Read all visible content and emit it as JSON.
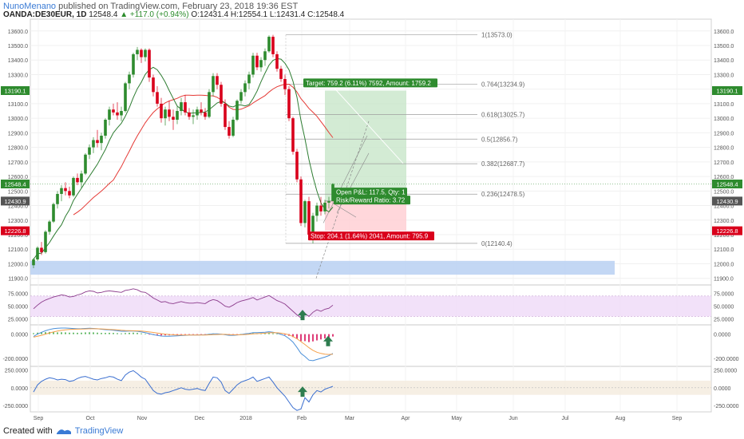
{
  "header": {
    "author": "NunoMenano",
    "published": "published on TradingView.com, February 23, 2018 19:36 EST",
    "symbol": "OANDA:DE30EUR, 1D",
    "last": "12548.4",
    "change": "+117.0 (+0.94%)",
    "ohlc": "O:12431.4 H:12554.1 L:12431.4 C:12548.4"
  },
  "footer": {
    "created_with": "Created with",
    "brand": "TradingView",
    "logo_icon": "tradingview-logo-icon"
  },
  "colors": {
    "up": "#2e8b2e",
    "down": "#d9001b",
    "ma_fast": "#2e7d32",
    "ma_slow": "#e53935",
    "rsi": "#8b3a8b",
    "macd": "#4a90d9",
    "signal": "#f5a04a",
    "cci": "#3b6fd0",
    "target_zone": "#c8e6c9",
    "stop_zone": "#ffcdd2",
    "support_zone": "#bcd3f3"
  },
  "chart_data": {
    "type": "candlestick",
    "main": {
      "y_axis_ticks": [
        "13600.0",
        "13500.0",
        "13400.0",
        "13300.0",
        "13200.0",
        "13100.0",
        "13000.0",
        "12900.0",
        "12800.0",
        "12700.0",
        "12600.0",
        "12500.0",
        "12400.0",
        "12300.0",
        "12200.0",
        "12100.0",
        "12000.0",
        "11900.0"
      ],
      "ylim": [
        11860,
        13670
      ],
      "current_price": "12548.4",
      "target_price": "13190.1",
      "entry_price": "12430.9",
      "stop_price": "12226.8",
      "candles": [
        [
          11990,
          12040,
          11970,
          12030
        ],
        [
          12030,
          12120,
          12020,
          12110
        ],
        [
          12110,
          12150,
          12060,
          12080
        ],
        [
          12080,
          12230,
          12070,
          12220
        ],
        [
          12220,
          12300,
          12200,
          12290
        ],
        [
          12290,
          12420,
          12280,
          12410
        ],
        [
          12410,
          12500,
          12380,
          12480
        ],
        [
          12480,
          12540,
          12430,
          12520
        ],
        [
          12520,
          12560,
          12470,
          12500
        ],
        [
          12500,
          12530,
          12450,
          12470
        ],
        [
          12470,
          12600,
          12460,
          12590
        ],
        [
          12590,
          12620,
          12540,
          12560
        ],
        [
          12560,
          12640,
          12520,
          12620
        ],
        [
          12620,
          12760,
          12610,
          12750
        ],
        [
          12750,
          12820,
          12720,
          12800
        ],
        [
          12800,
          12870,
          12760,
          12850
        ],
        [
          12850,
          12920,
          12800,
          12830
        ],
        [
          12830,
          12900,
          12780,
          12880
        ],
        [
          12880,
          13000,
          12860,
          12990
        ],
        [
          12990,
          13080,
          12950,
          13060
        ],
        [
          13060,
          13100,
          13020,
          13040
        ],
        [
          13040,
          13110,
          12990,
          13020
        ],
        [
          13020,
          13080,
          12980,
          13050
        ],
        [
          13050,
          13250,
          13040,
          13240
        ],
        [
          13240,
          13320,
          13200,
          13300
        ],
        [
          13300,
          13450,
          13280,
          13440
        ],
        [
          13440,
          13490,
          13400,
          13470
        ],
        [
          13470,
          13480,
          13380,
          13420
        ],
        [
          13420,
          13480,
          13390,
          13470
        ],
        [
          13470,
          13480,
          13250,
          13280
        ],
        [
          13280,
          13300,
          13150,
          13180
        ],
        [
          13180,
          13220,
          13080,
          13100
        ],
        [
          13100,
          13140,
          12970,
          13000
        ],
        [
          13000,
          13080,
          12950,
          13060
        ],
        [
          13060,
          13120,
          12980,
          13010
        ],
        [
          13010,
          13060,
          12920,
          12990
        ],
        [
          12990,
          13080,
          12960,
          13050
        ],
        [
          13050,
          13140,
          13020,
          13110
        ],
        [
          13110,
          13160,
          13020,
          13040
        ],
        [
          13040,
          13070,
          12990,
          13010
        ],
        [
          13010,
          13060,
          12960,
          13020
        ],
        [
          13020,
          13080,
          12990,
          13060
        ],
        [
          13060,
          13110,
          13020,
          13040
        ],
        [
          13040,
          13070,
          12990,
          13010
        ],
        [
          13010,
          13200,
          13000,
          13180
        ],
        [
          13180,
          13310,
          13150,
          13290
        ],
        [
          13290,
          13310,
          13200,
          13230
        ],
        [
          13230,
          13250,
          13080,
          13100
        ],
        [
          13100,
          13130,
          12920,
          12940
        ],
        [
          12940,
          12980,
          12860,
          12880
        ],
        [
          12880,
          13010,
          12870,
          12990
        ],
        [
          12990,
          13130,
          12980,
          13120
        ],
        [
          13120,
          13200,
          13100,
          13180
        ],
        [
          13180,
          13260,
          13150,
          13240
        ],
        [
          13240,
          13320,
          13200,
          13300
        ],
        [
          13300,
          13450,
          13280,
          13430
        ],
        [
          13430,
          13450,
          13330,
          13350
        ],
        [
          13350,
          13420,
          13320,
          13400
        ],
        [
          13400,
          13480,
          13360,
          13460
        ],
        [
          13460,
          13570,
          13450,
          13560
        ],
        [
          13560,
          13573,
          13420,
          13440
        ],
        [
          13440,
          13460,
          13320,
          13340
        ],
        [
          13340,
          13360,
          13250,
          13270
        ],
        [
          13270,
          13300,
          13160,
          13200
        ],
        [
          13200,
          13220,
          12980,
          13000
        ],
        [
          13000,
          13010,
          12750,
          12770
        ],
        [
          12770,
          12790,
          12560,
          12580
        ],
        [
          12580,
          12600,
          12260,
          12280
        ],
        [
          12280,
          12440,
          12250,
          12430
        ],
        [
          12430,
          12460,
          12180,
          12200
        ],
        [
          12200,
          12350,
          12140,
          12330
        ],
        [
          12330,
          12420,
          12290,
          12400
        ],
        [
          12400,
          12460,
          12330,
          12360
        ],
        [
          12360,
          12440,
          12340,
          12420
        ],
        [
          12420,
          12460,
          12380,
          12430
        ],
        [
          12431.4,
          12554.1,
          12431.4,
          12548.4
        ]
      ],
      "fib_levels": [
        {
          "label": "1(13573.0)",
          "value": 13573.0
        },
        {
          "label": "0.764(13234.9)",
          "value": 13234.9
        },
        {
          "label": "0.618(13025.7)",
          "value": 13025.7
        },
        {
          "label": "0.5(12856.7)",
          "value": 12856.7
        },
        {
          "label": "0.382(12687.7)",
          "value": 12687.7
        },
        {
          "label": "0.236(12478.5)",
          "value": 12478.5
        },
        {
          "label": "0(12140.4)",
          "value": 12140.4
        }
      ],
      "position_labels": {
        "target": "Target: 759.2 (6.11%) 7592, Amount: 1759.2",
        "open": "Open P&L: 117.5, Qty: 1",
        "risk_reward": "Risk/Reward Ratio: 3.72",
        "stop": "Stop: 204.1 (1.64%) 2041, Amount: 795.9"
      },
      "support_zone": [
        11925,
        12020
      ]
    },
    "x_axis_labels": [
      "Sep",
      "Oct",
      "Nov",
      "Dec",
      "2018",
      "Feb",
      "Mar",
      "Apr",
      "May",
      "Jun",
      "Jul",
      "Aug",
      "Sep"
    ],
    "rsi": {
      "ticks": [
        "75.0000",
        "50.0000",
        "25.0000"
      ],
      "ylim": [
        15,
        90
      ],
      "band": [
        30,
        70
      ],
      "values": [
        45,
        52,
        58,
        62,
        65,
        68,
        70,
        72,
        71,
        68,
        69,
        72,
        74,
        78,
        80,
        79,
        76,
        77,
        79,
        80,
        79,
        78,
        77,
        81,
        82,
        84,
        82,
        78,
        77,
        72,
        66,
        62,
        58,
        59,
        56,
        55,
        57,
        59,
        57,
        56,
        56,
        57,
        56,
        55,
        60,
        63,
        61,
        56,
        50,
        48,
        52,
        57,
        60,
        62,
        64,
        67,
        62,
        65,
        68,
        71,
        66,
        61,
        58,
        54,
        47,
        40,
        33,
        27,
        36,
        30,
        38,
        43,
        40,
        44,
        46,
        52
      ]
    },
    "macd": {
      "ticks": [
        "0.0000",
        "-200.0000"
      ],
      "ylim": [
        -260,
        70
      ],
      "histogram": [
        8,
        12,
        15,
        16,
        18,
        16,
        14,
        15,
        14,
        12,
        12,
        11,
        12,
        14,
        15,
        14,
        12,
        10,
        10,
        11,
        10,
        8,
        6,
        9,
        11,
        12,
        10,
        6,
        4,
        -2,
        -6,
        -9,
        -11,
        -10,
        -10,
        -8,
        -6,
        -5,
        -5,
        -4,
        -4,
        -3,
        -2,
        -2,
        2,
        5,
        4,
        1,
        -4,
        -7,
        -5,
        -2,
        1,
        3,
        5,
        8,
        5,
        6,
        7,
        9,
        6,
        2,
        -2,
        -6,
        -14,
        -24,
        -38,
        -58,
        -58,
        -66,
        -60,
        -52,
        -44,
        -36,
        -28,
        -20
      ],
      "macd_line": [
        -20,
        0,
        15,
        28,
        38,
        45,
        48,
        50,
        50,
        48,
        46,
        44,
        45,
        47,
        48,
        47,
        44,
        40,
        37,
        35,
        32,
        28,
        24,
        24,
        25,
        26,
        24,
        18,
        12,
        4,
        -4,
        -10,
        -16,
        -18,
        -18,
        -16,
        -14,
        -12,
        -10,
        -8,
        -8,
        -7,
        -6,
        -5,
        -2,
        2,
        3,
        0,
        -5,
        -10,
        -10,
        -7,
        -3,
        2,
        6,
        12,
        12,
        14,
        16,
        20,
        16,
        8,
        -2,
        -14,
        -36,
        -66,
        -110,
        -160,
        -185,
        -215,
        -220,
        -210,
        -200,
        -190,
        -178,
        -160
      ],
      "signal_line": [
        -25,
        -18,
        -10,
        0,
        10,
        18,
        25,
        31,
        35,
        38,
        40,
        41,
        42,
        43,
        44,
        44,
        44,
        43,
        41,
        39,
        37,
        35,
        32,
        30,
        29,
        28,
        27,
        25,
        22,
        18,
        14,
        9,
        4,
        0,
        -3,
        -5,
        -7,
        -8,
        -8,
        -8,
        -8,
        -8,
        -7,
        -7,
        -6,
        -4,
        -3,
        -2,
        -2,
        -4,
        -5,
        -5,
        -5,
        -3,
        -1,
        2,
        4,
        6,
        8,
        11,
        12,
        11,
        8,
        3,
        -6,
        -20,
        -38,
        -62,
        -86,
        -112,
        -134,
        -150,
        -160,
        -166,
        -168,
        -166
      ]
    },
    "cci": {
      "ticks": [
        "250.0000",
        "0.0000",
        "-250.0000"
      ],
      "ylim": [
        -340,
        290
      ],
      "band": [
        -100,
        100
      ],
      "values": [
        -60,
        40,
        90,
        120,
        140,
        130,
        110,
        120,
        115,
        90,
        100,
        130,
        150,
        160,
        140,
        120,
        110,
        130,
        140,
        160,
        150,
        120,
        100,
        180,
        220,
        240,
        200,
        150,
        120,
        40,
        -40,
        -80,
        -90,
        -70,
        -60,
        -40,
        -20,
        0,
        -20,
        -30,
        -20,
        -10,
        -30,
        -40,
        60,
        150,
        140,
        80,
        -40,
        -80,
        -20,
        40,
        80,
        100,
        120,
        150,
        90,
        110,
        130,
        150,
        80,
        0,
        -60,
        -120,
        -200,
        -280,
        -320,
        -300,
        -140,
        -200,
        -100,
        -40,
        -60,
        -20,
        0,
        20
      ]
    }
  }
}
